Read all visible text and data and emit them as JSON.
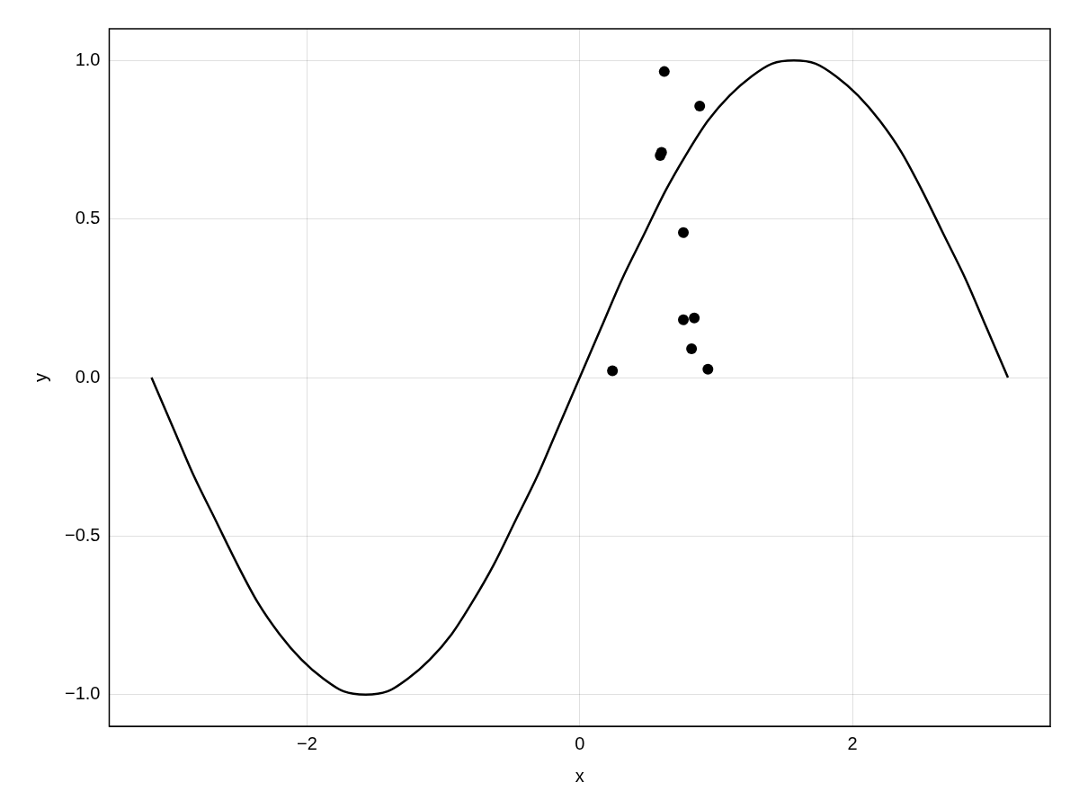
{
  "chart_data": {
    "type": "line",
    "xlabel": "x",
    "ylabel": "y",
    "grid": true,
    "legend": false,
    "xlim": [
      -3.45,
      3.45
    ],
    "ylim": [
      -1.1,
      1.1
    ],
    "xticks": [
      {
        "value": -2,
        "label": "−2"
      },
      0,
      2
    ],
    "yticks": [
      {
        "value": -1,
        "label": "−1.0"
      },
      {
        "value": -0.5,
        "label": "−0.5"
      },
      {
        "value": 0,
        "label": "0.0"
      },
      {
        "value": 0.5,
        "label": "0.5"
      },
      {
        "value": 1,
        "label": "1.0"
      }
    ],
    "series": [
      {
        "color": "#000000",
        "marker": "none",
        "line_style": "solid",
        "x": [
          -3.14,
          -2.98,
          -2.83,
          -2.67,
          -2.51,
          -2.36,
          -2.2,
          -2.04,
          -1.88,
          -1.73,
          -1.57,
          -1.41,
          -1.26,
          -1.1,
          -0.94,
          -0.79,
          -0.63,
          -0.47,
          -0.31,
          -0.16,
          0,
          0.16,
          0.31,
          0.47,
          0.63,
          0.79,
          0.94,
          1.1,
          1.26,
          1.41,
          1.57,
          1.73,
          1.88,
          2.04,
          2.2,
          2.36,
          2.51,
          2.67,
          2.83,
          2.98,
          3.14
        ],
        "values": [
          0,
          -0.16,
          -0.31,
          -0.45,
          -0.59,
          -0.71,
          -0.81,
          -0.89,
          -0.95,
          -0.99,
          -1,
          -0.99,
          -0.95,
          -0.89,
          -0.81,
          -0.71,
          -0.59,
          -0.45,
          -0.31,
          -0.16,
          0,
          0.16,
          0.31,
          0.45,
          0.59,
          0.71,
          0.81,
          0.89,
          0.95,
          0.99,
          1,
          0.99,
          0.95,
          0.89,
          0.81,
          0.71,
          0.59,
          0.45,
          0.31,
          0.16,
          0
        ]
      },
      {
        "type": "scatter",
        "color": "#000000",
        "marker": "circle",
        "x": [
          0.62,
          0.88,
          0.6,
          0.59,
          0.76,
          0.76,
          0.84,
          0.82,
          0.24,
          0.94
        ],
        "values": [
          0.965,
          0.856,
          0.71,
          0.7,
          0.457,
          0.182,
          0.188,
          0.091,
          0.021,
          0.026
        ]
      }
    ]
  }
}
